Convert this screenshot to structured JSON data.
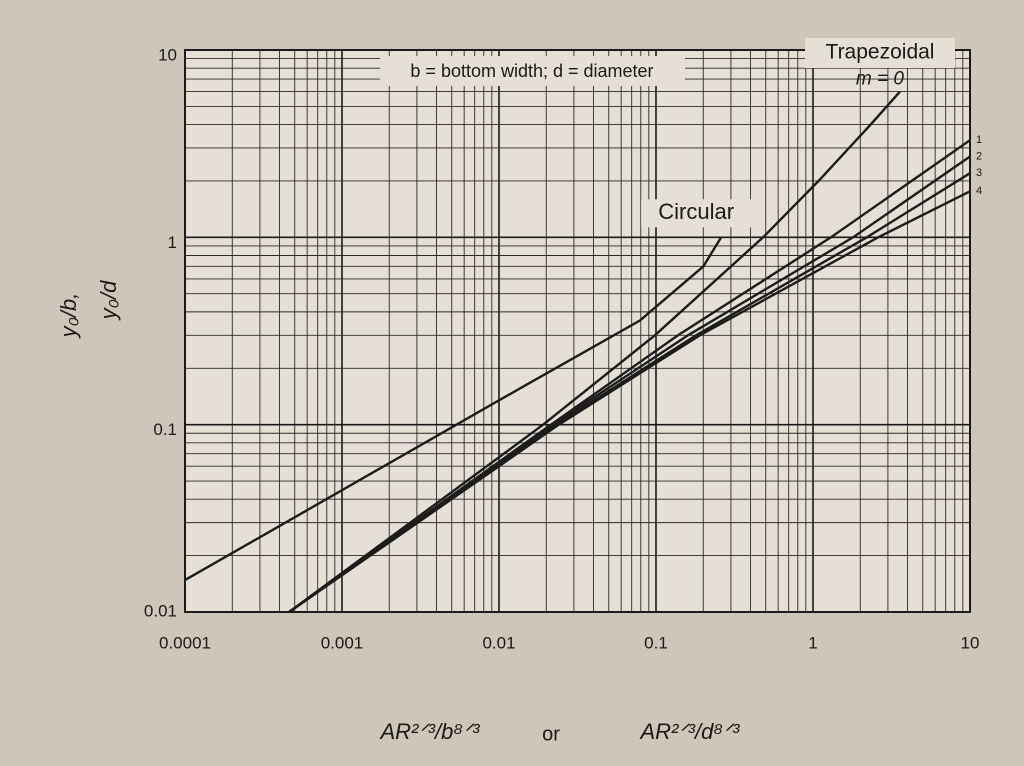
{
  "chart_data": {
    "type": "line",
    "annotation": "b = bottom width; d = diameter",
    "group_label": "Trapezoidal",
    "y_label": [
      "y₀/b,",
      "y₀/d"
    ],
    "x_label": [
      "AR²ᐟ³/b⁸ᐟ³",
      "or",
      "AR²ᐟ³/d⁸ᐟ³"
    ],
    "log_x": true,
    "log_y": true,
    "grid": true,
    "minor_grid": true,
    "xlim": [
      0.0001,
      10
    ],
    "ylim": [
      0.01,
      10
    ],
    "xticks": [
      0.0001,
      0.001,
      0.01,
      0.1,
      1,
      10
    ],
    "yticks": [
      0.01,
      0.1,
      1,
      10
    ],
    "series": [
      {
        "name": "m = 0",
        "color": "#1c1c1c",
        "x": [
          0.00046,
          0.0191,
          0.0984,
          0.481,
          1.086,
          2.33,
          3.58
        ],
        "values": [
          0.01,
          0.1,
          0.3,
          1,
          2,
          4,
          6
        ]
      },
      {
        "name": "1",
        "color": "#1c1c1c",
        "x": [
          0.00046,
          0.0214,
          0.138,
          1.3,
          10
        ],
        "values": [
          0.01,
          0.1,
          0.3,
          1,
          3.3
        ]
      },
      {
        "name": "2",
        "color": "#1c1c1c",
        "x": [
          0.00046,
          0.022,
          0.16,
          1.8,
          10
        ],
        "values": [
          0.01,
          0.1,
          0.3,
          1,
          2.7
        ]
      },
      {
        "name": "3",
        "color": "#1c1c1c",
        "x": [
          0.00046,
          0.023,
          0.18,
          2.2,
          10
        ],
        "values": [
          0.01,
          0.1,
          0.3,
          1,
          2.2
        ]
      },
      {
        "name": "4",
        "color": "#1c1c1c",
        "x": [
          0.00046,
          0.024,
          0.19,
          2.6,
          10
        ],
        "values": [
          0.01,
          0.1,
          0.3,
          1,
          1.76
        ]
      },
      {
        "name": "Circular",
        "color": "#1c1c1c",
        "x": [
          0.0001,
          0.01,
          0.079,
          0.2,
          0.26
        ],
        "values": [
          0.0148,
          0.135,
          0.36,
          0.7,
          1.0
        ]
      }
    ]
  }
}
